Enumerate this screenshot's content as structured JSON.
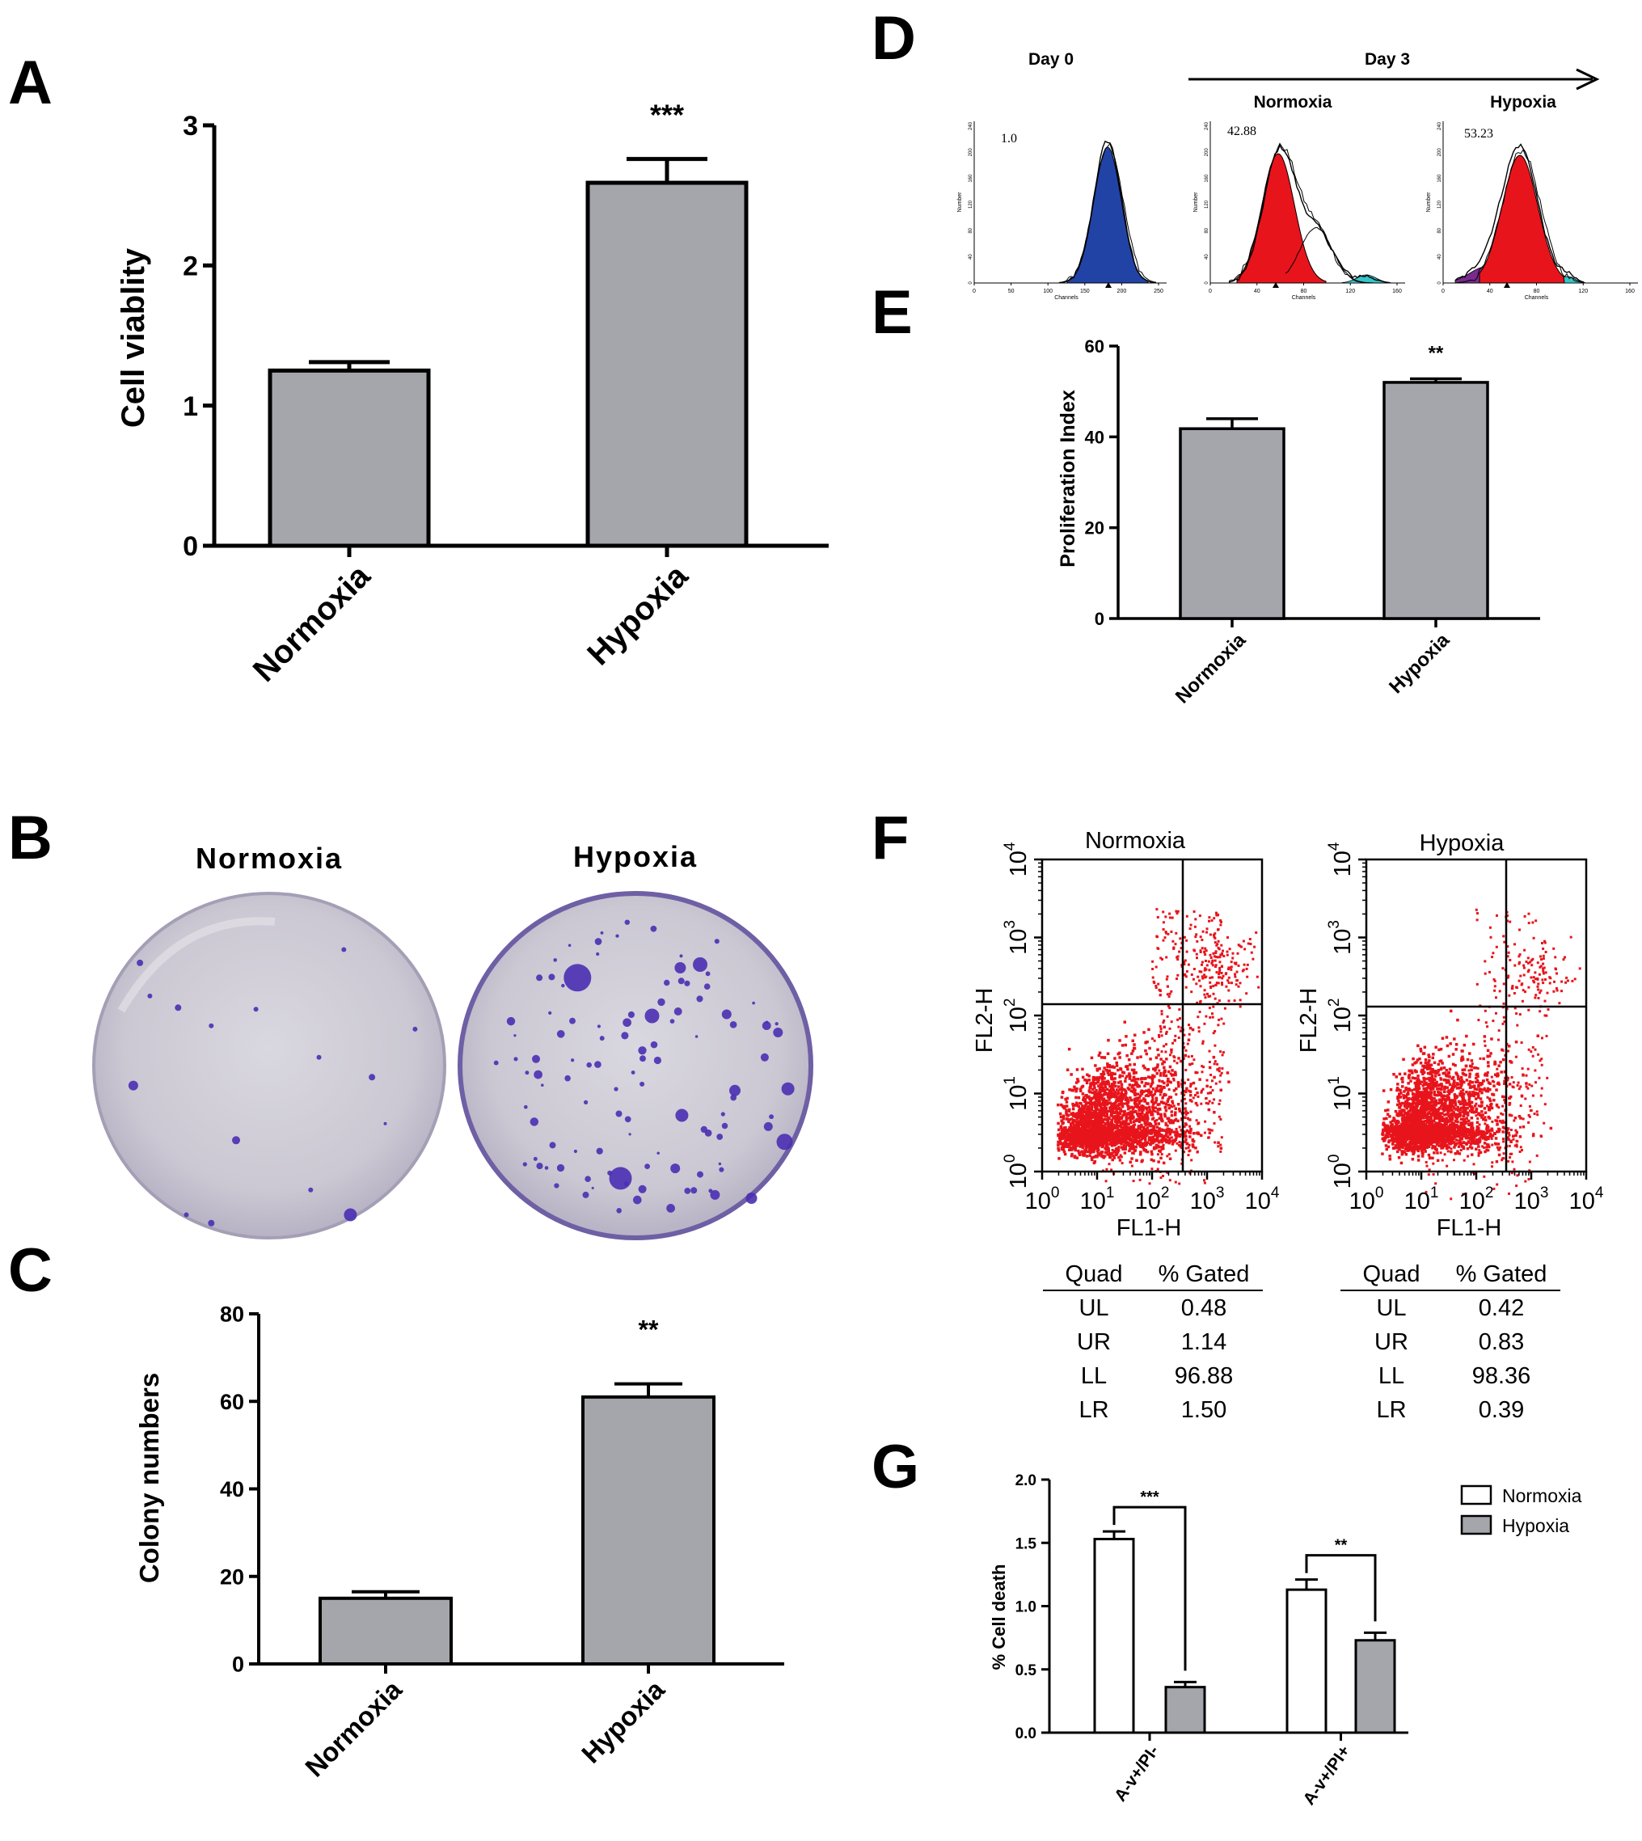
{
  "panel_labels": [
    "A",
    "B",
    "C",
    "D",
    "E",
    "F",
    "G"
  ],
  "chart_data": [
    {
      "panel": "A",
      "type": "bar",
      "categories": [
        "Normoxia",
        "Hypoxia"
      ],
      "values": [
        1.25,
        2.59
      ],
      "errors": [
        0.06,
        0.17
      ],
      "ylabel": "Cell viablity",
      "ylim": [
        0,
        3
      ],
      "yticks": [
        "0",
        "1",
        "2",
        "3"
      ],
      "significance": [
        {
          "text": "***",
          "over": 1
        }
      ],
      "bar_color": "#a4a6ab"
    },
    {
      "panel": "B",
      "type": "image",
      "labels": [
        "Normoxia",
        "Hypoxia"
      ]
    },
    {
      "panel": "C",
      "type": "bar",
      "categories": [
        "Normoxia",
        "Hypoxia"
      ],
      "values": [
        15,
        61
      ],
      "errors": [
        1.5,
        3.0
      ],
      "ylabel": "Colony numbers",
      "ylim": [
        0,
        80
      ],
      "yticks": [
        "0",
        "20",
        "40",
        "60",
        "80"
      ],
      "significance": [
        {
          "text": "**",
          "over": 1
        }
      ],
      "bar_color": "#a4a6ab"
    },
    {
      "panel": "D",
      "type": "histogram",
      "header": {
        "day0": "Day 0",
        "day3": "Day 3"
      },
      "plots": [
        {
          "title": "",
          "value": "1.0",
          "ylabel": "Number",
          "xlabel": "Channels",
          "xticks": [
            "0",
            "50",
            "100",
            "150",
            "200",
            "250"
          ],
          "yticks": [
            "0",
            "40",
            "80",
            "120",
            "160",
            "200",
            "240"
          ]
        },
        {
          "title": "Normoxia",
          "value": "42.88",
          "ylabel": "Number",
          "xlabel": "Channels",
          "xticks": [
            "0",
            "40",
            "80",
            "120",
            "160"
          ],
          "yticks": [
            "0",
            "40",
            "80",
            "120",
            "160",
            "200",
            "240"
          ]
        },
        {
          "title": "Hypoxia",
          "value": "53.23",
          "ylabel": "Number",
          "xlabel": "Channels",
          "xticks": [
            "0",
            "40",
            "80",
            "120",
            "160"
          ],
          "yticks": [
            "0",
            "40",
            "80",
            "120",
            "160",
            "200",
            "240"
          ]
        }
      ],
      "colors": {
        "day0": "#2243a6",
        "gen1": "#e8141c",
        "gen2": "#36c4c8",
        "gen0": "#7a2a8e"
      }
    },
    {
      "panel": "E",
      "type": "bar",
      "categories": [
        "Normoxia",
        "Hypoxia"
      ],
      "values": [
        41.8,
        52.0
      ],
      "errors": [
        2.2,
        0.8
      ],
      "ylabel": "Proliferation Index",
      "ylim": [
        0,
        60
      ],
      "yticks": [
        "0",
        "20",
        "40",
        "60"
      ],
      "significance": [
        {
          "text": "**",
          "over": 1
        }
      ],
      "bar_color": "#a4a6ab"
    },
    {
      "panel": "F",
      "type": "scatter",
      "plots": [
        {
          "title": "Normoxia",
          "xlabel": "FL1-H",
          "ylabel": "FL2-H",
          "table_header": [
            "Quad",
            "% Gated"
          ],
          "rows": [
            [
              "UL",
              "0.48"
            ],
            [
              "UR",
              "1.14"
            ],
            [
              "LL",
              "96.88"
            ],
            [
              "LR",
              "1.50"
            ]
          ]
        },
        {
          "title": "Hypoxia",
          "xlabel": "FL1-H",
          "ylabel": "FL2-H",
          "table_header": [
            "Quad",
            "% Gated"
          ],
          "rows": [
            [
              "UL",
              "0.42"
            ],
            [
              "UR",
              "0.83"
            ],
            [
              "LL",
              "98.36"
            ],
            [
              "LR",
              "0.39"
            ]
          ]
        }
      ],
      "tick_bases": [
        "10",
        "10",
        "10",
        "10",
        "10"
      ],
      "tick_exps": [
        "0",
        "1",
        "2",
        "3",
        "4"
      ],
      "point_color": "#e8141c"
    },
    {
      "panel": "G",
      "type": "bar",
      "categories": [
        "A-v+/PI-",
        "A-v+/PI+"
      ],
      "series": [
        {
          "name": "Normoxia",
          "values": [
            1.53,
            1.13
          ],
          "errors": [
            0.06,
            0.08
          ],
          "color": "#ffffff"
        },
        {
          "name": "Hypoxia",
          "values": [
            0.36,
            0.73
          ],
          "errors": [
            0.04,
            0.06
          ],
          "color": "#a4a6ab"
        }
      ],
      "ylabel": "% Cell death",
      "ylim": [
        0,
        2.0
      ],
      "yticks": [
        "0.0",
        "0.5",
        "1.0",
        "1.5",
        "2.0"
      ],
      "significance": [
        {
          "text": "***",
          "group": 0
        },
        {
          "text": "**",
          "group": 1
        }
      ],
      "legend": "top-right"
    }
  ]
}
